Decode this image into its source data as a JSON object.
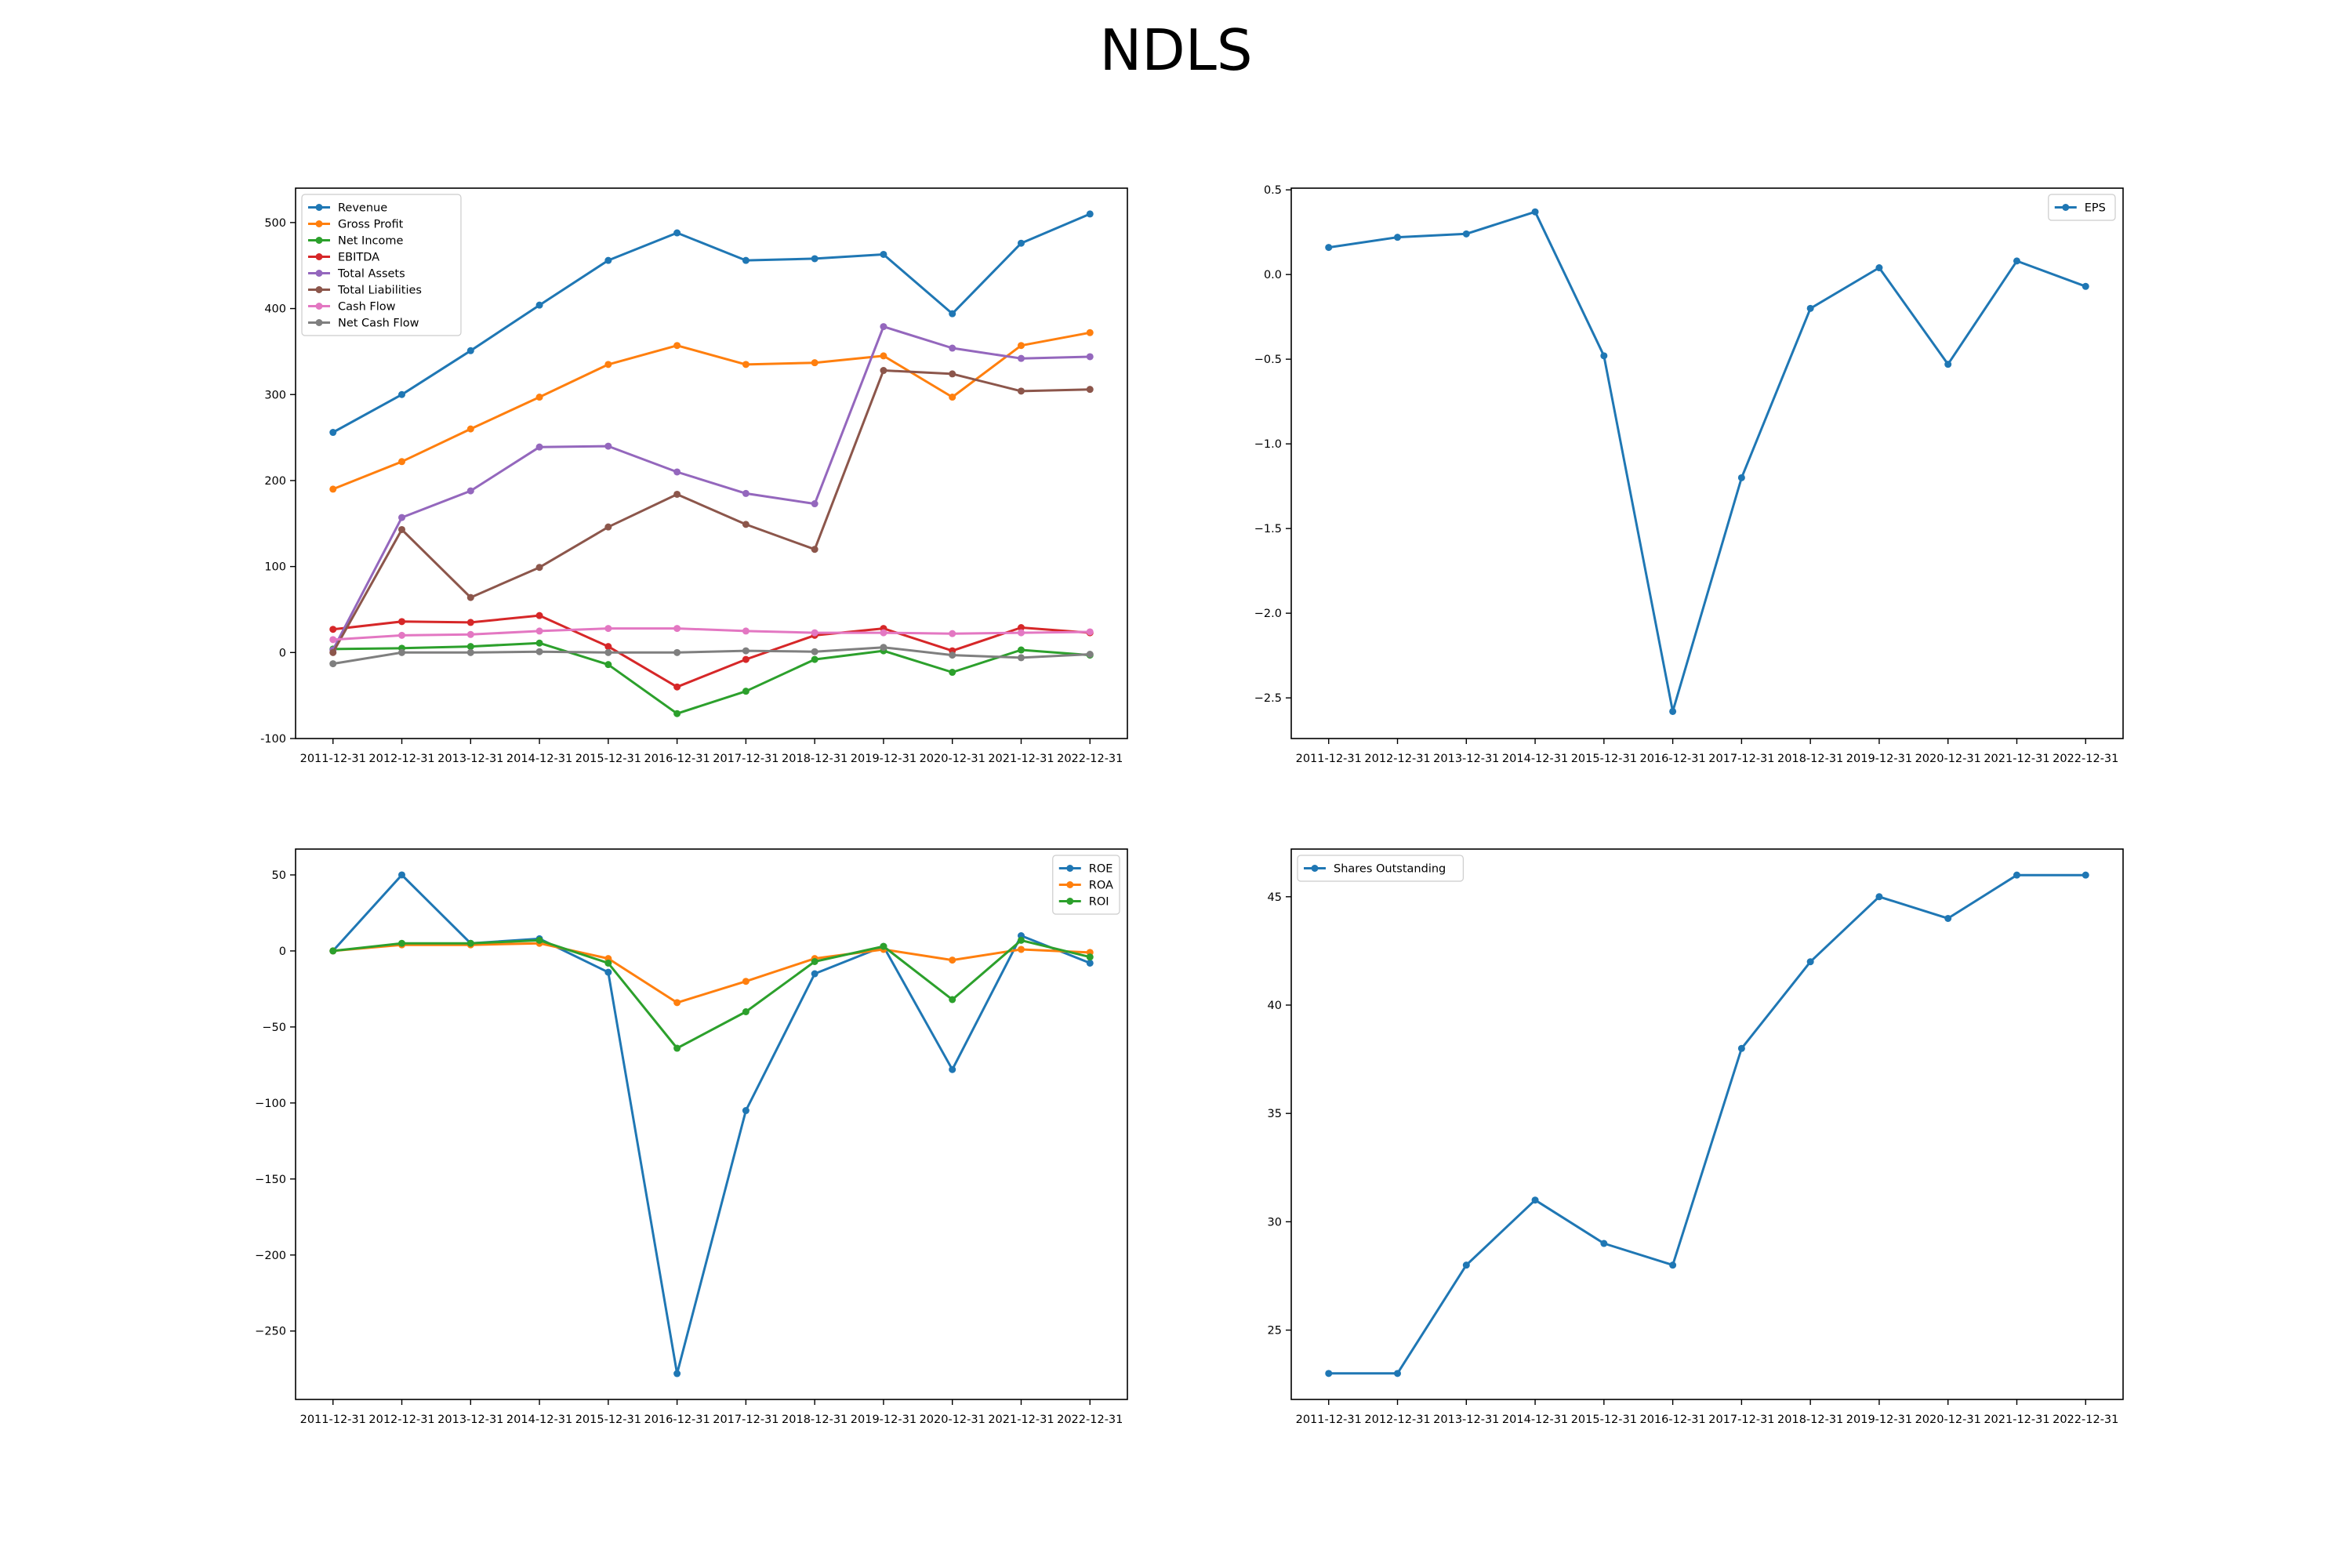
{
  "page": {
    "title": "NDLS"
  },
  "chart_data": [
    {
      "type": "line",
      "x": [
        "2011-12-31",
        "2012-12-31",
        "2013-12-31",
        "2014-12-31",
        "2015-12-31",
        "2016-12-31",
        "2017-12-31",
        "2018-12-31",
        "2019-12-31",
        "2020-12-31",
        "2021-12-31",
        "2022-12-31"
      ],
      "ylim": [
        -100,
        540
      ],
      "yticks": [
        -100,
        0,
        100,
        200,
        300,
        400,
        500
      ],
      "legend": "upper left",
      "series": [
        {
          "name": "Revenue",
          "color": "#1f77b4",
          "values": [
            256,
            300,
            351,
            404,
            456,
            488,
            456,
            458,
            463,
            394,
            476,
            510
          ]
        },
        {
          "name": "Gross Profit",
          "color": "#ff7f0e",
          "values": [
            190,
            222,
            260,
            297,
            335,
            357,
            335,
            337,
            345,
            297,
            357,
            372
          ]
        },
        {
          "name": "Net Income",
          "color": "#2ca02c",
          "values": [
            4,
            5,
            7,
            11,
            -14,
            -71,
            -45,
            -8,
            2,
            -23,
            3,
            -3
          ]
        },
        {
          "name": "EBITDA",
          "color": "#d62728",
          "values": [
            27,
            36,
            35,
            43,
            7,
            -40,
            -8,
            20,
            28,
            2,
            29,
            23
          ]
        },
        {
          "name": "Total Assets",
          "color": "#9467bd",
          "values": [
            3,
            157,
            188,
            239,
            240,
            210,
            185,
            173,
            379,
            354,
            342,
            344
          ]
        },
        {
          "name": "Total Liabilities",
          "color": "#8c564b",
          "values": [
            0,
            143,
            64,
            99,
            146,
            184,
            149,
            120,
            328,
            324,
            304,
            306
          ]
        },
        {
          "name": "Cash Flow",
          "color": "#e377c2",
          "values": [
            15,
            20,
            21,
            25,
            28,
            28,
            25,
            23,
            23,
            22,
            23,
            24
          ]
        },
        {
          "name": "Net Cash Flow",
          "color": "#7f7f7f",
          "values": [
            -13,
            0,
            0,
            1,
            0,
            0,
            2,
            1,
            6,
            -3,
            -6,
            -2
          ]
        }
      ]
    },
    {
      "type": "line",
      "x": [
        "2011-12-31",
        "2012-12-31",
        "2013-12-31",
        "2014-12-31",
        "2015-12-31",
        "2016-12-31",
        "2017-12-31",
        "2018-12-31",
        "2019-12-31",
        "2020-12-31",
        "2021-12-31",
        "2022-12-31"
      ],
      "ylim": [
        -2.74,
        0.51
      ],
      "yticks": [
        -2.5,
        -2.0,
        -1.5,
        -1.0,
        -0.5,
        0.0,
        0.5
      ],
      "ytick_labels": [
        "−2.5",
        "−2.0",
        "−1.5",
        "−1.0",
        "−0.5",
        "0.0",
        "0.5"
      ],
      "legend": "upper right",
      "series": [
        {
          "name": "EPS",
          "color": "#1f77b4",
          "values": [
            0.16,
            0.22,
            0.24,
            0.37,
            -0.48,
            -2.58,
            -1.2,
            -0.2,
            0.04,
            -0.53,
            0.08,
            -0.07
          ]
        }
      ]
    },
    {
      "type": "line",
      "x": [
        "2011-12-31",
        "2012-12-31",
        "2013-12-31",
        "2014-12-31",
        "2015-12-31",
        "2016-12-31",
        "2017-12-31",
        "2018-12-31",
        "2019-12-31",
        "2020-12-31",
        "2021-12-31",
        "2022-12-31"
      ],
      "ylim": [
        -295,
        67
      ],
      "yticks": [
        -250,
        -200,
        -150,
        -100,
        -50,
        0,
        50
      ],
      "ytick_labels": [
        "−250",
        "−200",
        "−150",
        "−100",
        "−50",
        "0",
        "50"
      ],
      "legend": "upper right",
      "series": [
        {
          "name": "ROE",
          "color": "#1f77b4",
          "values": [
            0,
            50,
            5,
            8,
            -14,
            -278,
            -105,
            -15,
            3,
            -78,
            10,
            -8
          ]
        },
        {
          "name": "ROA",
          "color": "#ff7f0e",
          "values": [
            0,
            4,
            4,
            5,
            -5,
            -34,
            -20,
            -5,
            1,
            -6,
            1,
            -1
          ]
        },
        {
          "name": "ROI",
          "color": "#2ca02c",
          "values": [
            0,
            5,
            5,
            7,
            -8,
            -64,
            -40,
            -7,
            3,
            -32,
            7,
            -4
          ]
        }
      ]
    },
    {
      "type": "line",
      "x": [
        "2011-12-31",
        "2012-12-31",
        "2013-12-31",
        "2014-12-31",
        "2015-12-31",
        "2016-12-31",
        "2017-12-31",
        "2018-12-31",
        "2019-12-31",
        "2020-12-31",
        "2021-12-31",
        "2022-12-31"
      ],
      "ylim": [
        21.8,
        47.2
      ],
      "yticks": [
        25,
        30,
        35,
        40,
        45
      ],
      "legend": "upper left",
      "series": [
        {
          "name": "Shares Outstanding",
          "color": "#1f77b4",
          "values": [
            23,
            23,
            28,
            31,
            29,
            28,
            38,
            42,
            45,
            44,
            46,
            46
          ]
        }
      ]
    }
  ]
}
